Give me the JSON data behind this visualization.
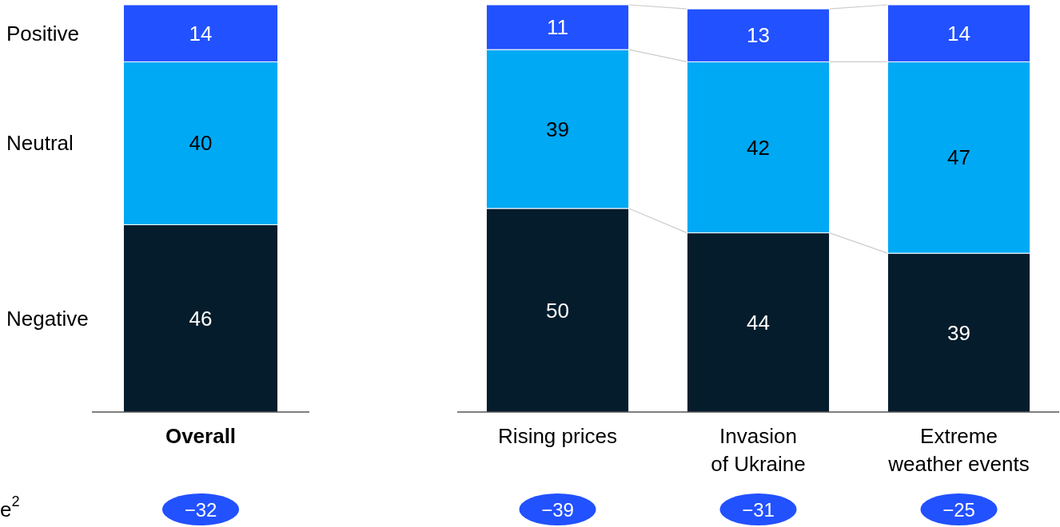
{
  "chart_data": [
    {
      "type": "bar",
      "stacked": true,
      "data_labels": true,
      "legend": "left",
      "categories": [
        "Overall"
      ],
      "series": [
        {
          "name": "Negative",
          "color": "#051c2c",
          "values": [
            46
          ]
        },
        {
          "name": "Neutral",
          "color": "#00a9f4",
          "values": [
            40
          ]
        },
        {
          "name": "Positive",
          "color": "#2251ff",
          "values": [
            14
          ]
        }
      ],
      "annotations": [
        "−32",
        "e$^{2}$"
      ]
    },
    {
      "type": "bar",
      "stacked": true,
      "data_labels": true,
      "categories": [
        "Rising prices",
        "Invasion\nof Ukraine",
        "Extreme\nweather events"
      ],
      "series": [
        {
          "color": "#051c2c",
          "values": [
            50,
            44,
            39
          ]
        },
        {
          "color": "#00a9f4",
          "values": [
            39,
            42,
            47
          ]
        },
        {
          "color": "#2251ff",
          "values": [
            11,
            13,
            14
          ]
        }
      ],
      "annotations": [
        "−39",
        "−31",
        "−25"
      ]
    }
  ]
}
